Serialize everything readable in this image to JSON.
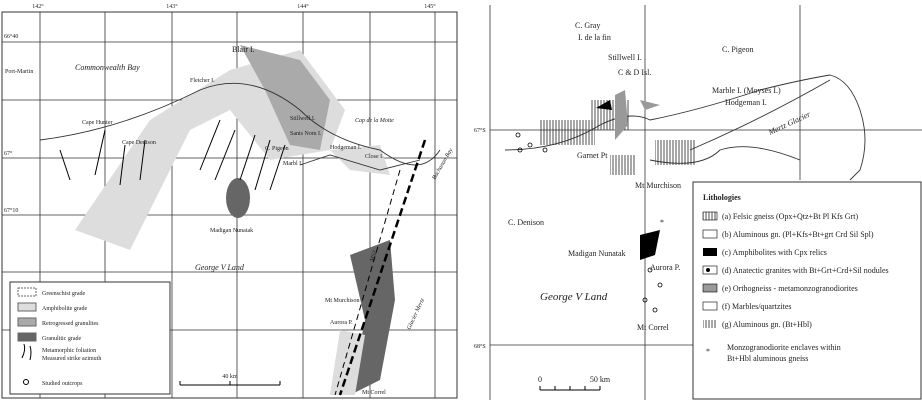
{
  "left_map": {
    "lon_labels": [
      "142°",
      "143°",
      "144°",
      "145°"
    ],
    "lat_labels": [
      "66°40",
      "67°",
      "67°10"
    ],
    "places": [
      "Port-Martin",
      "Commonwealth Bay",
      "Blair I.",
      "Fletcher I.",
      "Cape Hunter",
      "Cape Denison",
      "C. Pigeon",
      "Stillwell I.",
      "Sants Nom I.",
      "Marbl I.",
      "Hodgeman I.",
      "Cap de la Motte",
      "Close I.",
      "Buchanan Bay",
      "Madigan Nunatak",
      "George V Land",
      "Mt Murchison",
      "Aurora P.",
      "Glacier Mertz",
      "Mt Correl",
      "MSZ"
    ],
    "legend": [
      "Greenschist grade",
      "Amphibolite grade",
      "Retrogressed granulites",
      "Granulitic grade",
      "Metamorphic foliation",
      "Measured strike azimuth",
      "Studied outcrops"
    ],
    "scale": "40 km"
  },
  "right_map": {
    "lat_labels": [
      "67°S",
      "68°S"
    ],
    "places": [
      "C. Gray",
      "I. de la fin",
      "Stillwell I.",
      "C & D Isl.",
      "C. Pigeon",
      "Marble I. (Moyses I.)",
      "Hodgeman I.",
      "Garnet Pt",
      "Mertz Glacier",
      "Mt Murchison",
      "C. Denison",
      "Madigan Nunatak",
      "Aurora P.",
      "George V Land",
      "Mt Correl"
    ],
    "scale": [
      "0",
      "50 km"
    ],
    "legend_title": "Lithologies",
    "legend": [
      "(a) Felsic gneiss (Opx+Qtz+Bt Pl Kfs Grt)",
      "(b) Aluminous gn. (Pl+Kfs+Bt+grt Crd Sil Spl)",
      "(c) Amphibolites with Cpx relics",
      "(d) Anatectic granites with Bt+Grt+Crd+Sil nodules",
      "(e) Orthogneiss - metamonzogranodiorites",
      "(f) Marbles/quartzites",
      "(g) Aluminous gn. (Bt+Hbl)"
    ],
    "note_symbol": "*",
    "note": [
      "Monzogranodiorite enclaves within",
      "Bt+Hbl aluminous gneiss"
    ]
  }
}
